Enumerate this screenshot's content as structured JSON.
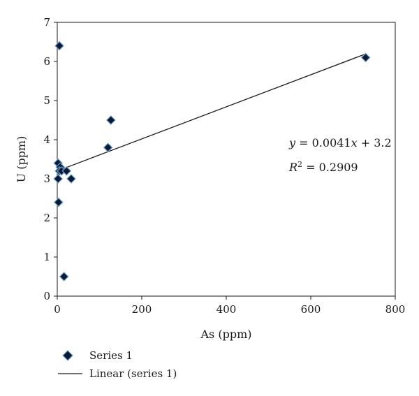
{
  "chart_data": {
    "type": "scatter",
    "xlabel": "As (ppm)",
    "ylabel": "U (ppm)",
    "xlim": [
      0,
      800
    ],
    "ylim": [
      0,
      7
    ],
    "xticks": [
      0,
      200,
      400,
      600,
      800
    ],
    "yticks": [
      0,
      1,
      2,
      3,
      4,
      5,
      6,
      7
    ],
    "grid": false,
    "legend_position": "bottom-left",
    "series": [
      {
        "name": "Series 1",
        "marker": "diamond",
        "color": "#0b1a33",
        "edge_color": "#6f9fd0",
        "points": [
          {
            "x": 5,
            "y": 6.4
          },
          {
            "x": 730,
            "y": 6.1
          },
          {
            "x": 127,
            "y": 4.5
          },
          {
            "x": 120,
            "y": 3.8
          },
          {
            "x": 2,
            "y": 3.4
          },
          {
            "x": 7,
            "y": 3.3
          },
          {
            "x": 5,
            "y": 3.2
          },
          {
            "x": 10,
            "y": 3.2
          },
          {
            "x": 22,
            "y": 3.2
          },
          {
            "x": 2,
            "y": 3.0
          },
          {
            "x": 33,
            "y": 3.0
          },
          {
            "x": 3,
            "y": 2.4
          },
          {
            "x": 16,
            "y": 0.5
          }
        ]
      }
    ],
    "trendline": {
      "name": "Linear (series 1)",
      "type": "linear",
      "slope": 0.0041,
      "intercept": 3.2,
      "x_range": [
        0,
        730
      ],
      "color": "#1a1a1a"
    },
    "annotations": {
      "equation": {
        "y_var": "y",
        "eq_text": " = 0.0041",
        "x_var": "x",
        "tail_text": " + 3.2"
      },
      "r_squared": {
        "var": "R",
        "exp": "2",
        "value_text": " = 0.2909"
      }
    }
  }
}
